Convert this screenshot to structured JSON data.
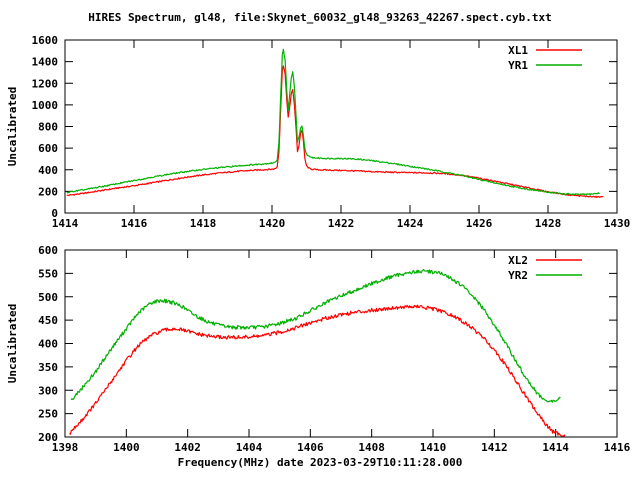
{
  "title": "HIRES Spectrum, gl48, file:Skynet_60032_gl48_93263_42267.spect.cyb.txt",
  "colors": {
    "red_series": "#ff0000",
    "green_series": "#00b000",
    "axis": "#000000",
    "background": "#ffffff"
  },
  "chart_data": [
    {
      "type": "line",
      "panel": "top",
      "ylabel": "Uncalibrated",
      "xlim": [
        1414,
        1430
      ],
      "ylim": [
        0,
        1600
      ],
      "xtick_step": 2,
      "ytick_step": 200,
      "xticks": [
        1414,
        1416,
        1418,
        1420,
        1422,
        1424,
        1426,
        1428,
        1430
      ],
      "yticks": [
        0,
        200,
        400,
        600,
        800,
        1000,
        1200,
        1400,
        1600
      ],
      "grid": false,
      "legend_position": "inside-top-right",
      "series": [
        {
          "name": "XL1",
          "color": "#ff0000",
          "points": [
            [
              1414.05,
              162
            ],
            [
              1414.5,
              180
            ],
            [
              1415,
              205
            ],
            [
              1415.5,
              230
            ],
            [
              1416,
              252
            ],
            [
              1416.5,
              278
            ],
            [
              1417,
              305
            ],
            [
              1417.5,
              330
            ],
            [
              1418,
              352
            ],
            [
              1418.5,
              370
            ],
            [
              1419,
              385
            ],
            [
              1419.5,
              396
            ],
            [
              1420,
              405
            ],
            [
              1420.1,
              410
            ],
            [
              1420.15,
              428
            ],
            [
              1420.2,
              560
            ],
            [
              1420.25,
              950
            ],
            [
              1420.3,
              1320
            ],
            [
              1420.33,
              1360
            ],
            [
              1420.38,
              1290
            ],
            [
              1420.43,
              1040
            ],
            [
              1420.47,
              880
            ],
            [
              1420.52,
              1000
            ],
            [
              1420.56,
              1100
            ],
            [
              1420.6,
              1140
            ],
            [
              1420.65,
              1000
            ],
            [
              1420.7,
              760
            ],
            [
              1420.74,
              570
            ],
            [
              1420.78,
              620
            ],
            [
              1420.83,
              740
            ],
            [
              1420.87,
              768
            ],
            [
              1420.91,
              660
            ],
            [
              1420.95,
              510
            ],
            [
              1421,
              435
            ],
            [
              1421.1,
              408
            ],
            [
              1421.3,
              400
            ],
            [
              1421.6,
              397
            ],
            [
              1422,
              394
            ],
            [
              1422.5,
              388
            ],
            [
              1423,
              381
            ],
            [
              1423.5,
              376
            ],
            [
              1424,
              373
            ],
            [
              1424.5,
              371
            ],
            [
              1425,
              365
            ],
            [
              1425.5,
              348
            ],
            [
              1426,
              322
            ],
            [
              1426.5,
              292
            ],
            [
              1427,
              260
            ],
            [
              1427.5,
              228
            ],
            [
              1428,
              196
            ],
            [
              1428.5,
              172
            ],
            [
              1429,
              156
            ],
            [
              1429.3,
              150
            ],
            [
              1429.6,
              148
            ]
          ]
        },
        {
          "name": "YR1",
          "color": "#00b000",
          "points": [
            [
              1414.05,
              190
            ],
            [
              1414.5,
              212
            ],
            [
              1415,
              240
            ],
            [
              1415.5,
              270
            ],
            [
              1416,
              300
            ],
            [
              1416.5,
              330
            ],
            [
              1417,
              358
            ],
            [
              1417.5,
              382
            ],
            [
              1418,
              403
            ],
            [
              1418.5,
              420
            ],
            [
              1419,
              435
            ],
            [
              1419.5,
              448
            ],
            [
              1419.8,
              456
            ],
            [
              1420,
              462
            ],
            [
              1420.1,
              468
            ],
            [
              1420.15,
              495
            ],
            [
              1420.2,
              650
            ],
            [
              1420.25,
              1070
            ],
            [
              1420.3,
              1460
            ],
            [
              1420.33,
              1510
            ],
            [
              1420.38,
              1420
            ],
            [
              1420.43,
              1120
            ],
            [
              1420.47,
              945
            ],
            [
              1420.52,
              1120
            ],
            [
              1420.56,
              1250
            ],
            [
              1420.6,
              1305
            ],
            [
              1420.65,
              1160
            ],
            [
              1420.7,
              880
            ],
            [
              1420.74,
              655
            ],
            [
              1420.78,
              700
            ],
            [
              1420.83,
              780
            ],
            [
              1420.87,
              800
            ],
            [
              1420.91,
              712
            ],
            [
              1420.95,
              600
            ],
            [
              1421,
              545
            ],
            [
              1421.1,
              515
            ],
            [
              1421.3,
              508
            ],
            [
              1421.6,
              505
            ],
            [
              1422,
              505
            ],
            [
              1422.5,
              498
            ],
            [
              1423,
              480
            ],
            [
              1423.5,
              458
            ],
            [
              1424,
              432
            ],
            [
              1424.5,
              406
            ],
            [
              1425,
              378
            ],
            [
              1425.5,
              348
            ],
            [
              1426,
              310
            ],
            [
              1426.5,
              275
            ],
            [
              1427,
              243
            ],
            [
              1427.5,
              215
            ],
            [
              1428,
              193
            ],
            [
              1428.5,
              176
            ],
            [
              1428.9,
              171
            ],
            [
              1429.2,
              174
            ],
            [
              1429.5,
              183
            ]
          ]
        }
      ]
    },
    {
      "type": "line",
      "panel": "bottom",
      "ylabel": "Uncalibrated",
      "xlabel": "Frequency(MHz) date 2023-03-29T10:11:28.000",
      "xlim": [
        1398,
        1416
      ],
      "ylim": [
        200,
        600
      ],
      "xtick_step": 2,
      "ytick_step": 50,
      "xticks": [
        1398,
        1400,
        1402,
        1404,
        1406,
        1408,
        1410,
        1412,
        1414,
        1416
      ],
      "yticks": [
        200,
        250,
        300,
        350,
        400,
        450,
        500,
        550,
        600
      ],
      "grid": false,
      "legend_position": "inside-top-right",
      "series": [
        {
          "name": "XL2",
          "color": "#ff0000",
          "points": [
            [
              1398.15,
              208
            ],
            [
              1398.5,
              232
            ],
            [
              1399,
              272
            ],
            [
              1399.5,
              318
            ],
            [
              1400,
              364
            ],
            [
              1400.4,
              396
            ],
            [
              1400.8,
              417
            ],
            [
              1401.2,
              428
            ],
            [
              1401.6,
              432
            ],
            [
              1402,
              426
            ],
            [
              1402.4,
              419
            ],
            [
              1402.8,
              415
            ],
            [
              1403.2,
              413
            ],
            [
              1403.6,
              413
            ],
            [
              1404,
              414
            ],
            [
              1404.5,
              417
            ],
            [
              1405,
              424
            ],
            [
              1405.5,
              433
            ],
            [
              1406,
              444
            ],
            [
              1406.5,
              454
            ],
            [
              1407,
              462
            ],
            [
              1407.5,
              467
            ],
            [
              1408,
              471
            ],
            [
              1408.5,
              475
            ],
            [
              1409,
              478
            ],
            [
              1409.5,
              479
            ],
            [
              1410,
              474
            ],
            [
              1410.4,
              466
            ],
            [
              1410.8,
              454
            ],
            [
              1411.2,
              437
            ],
            [
              1411.6,
              415
            ],
            [
              1412,
              387
            ],
            [
              1412.4,
              351
            ],
            [
              1412.8,
              310
            ],
            [
              1413.2,
              270
            ],
            [
              1413.6,
              233
            ],
            [
              1413.9,
              212
            ],
            [
              1414.1,
              206
            ],
            [
              1414.3,
              205
            ]
          ]
        },
        {
          "name": "YR2",
          "color": "#00b000",
          "points": [
            [
              1398.2,
              278
            ],
            [
              1398.5,
              300
            ],
            [
              1399,
              340
            ],
            [
              1399.5,
              388
            ],
            [
              1400,
              432
            ],
            [
              1400.4,
              466
            ],
            [
              1400.8,
              487
            ],
            [
              1401.1,
              492
            ],
            [
              1401.4,
              490
            ],
            [
              1401.8,
              480
            ],
            [
              1402.2,
              462
            ],
            [
              1402.6,
              448
            ],
            [
              1403,
              439
            ],
            [
              1403.4,
              435
            ],
            [
              1404,
              434
            ],
            [
              1404.5,
              436
            ],
            [
              1405,
              443
            ],
            [
              1405.5,
              453
            ],
            [
              1406,
              470
            ],
            [
              1406.5,
              487
            ],
            [
              1407,
              502
            ],
            [
              1407.5,
              515
            ],
            [
              1408,
              528
            ],
            [
              1408.5,
              540
            ],
            [
              1409,
              549
            ],
            [
              1409.4,
              553
            ],
            [
              1409.8,
              555
            ],
            [
              1410.2,
              551
            ],
            [
              1410.6,
              539
            ],
            [
              1411,
              521
            ],
            [
              1411.4,
              494
            ],
            [
              1411.8,
              460
            ],
            [
              1412.2,
              419
            ],
            [
              1412.6,
              374
            ],
            [
              1413,
              329
            ],
            [
              1413.4,
              293
            ],
            [
              1413.7,
              275
            ],
            [
              1414,
              277
            ],
            [
              1414.15,
              286
            ]
          ]
        }
      ]
    }
  ]
}
